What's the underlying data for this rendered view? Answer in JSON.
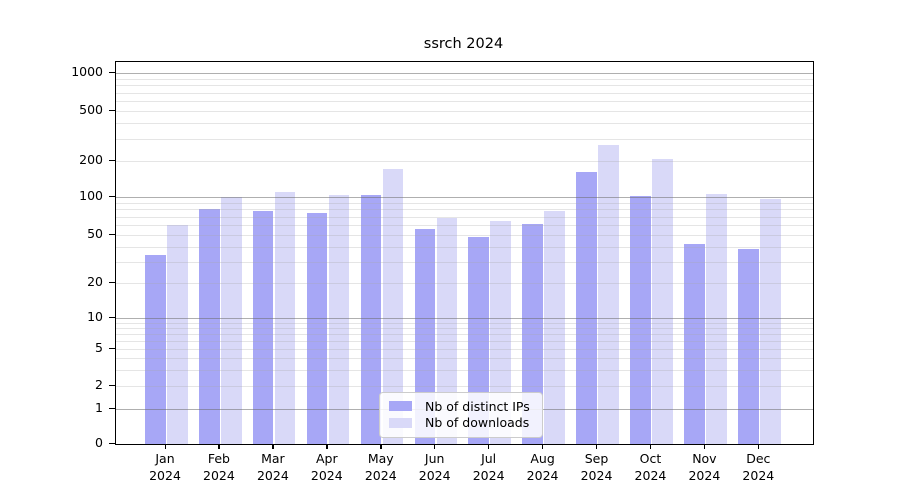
{
  "chart_data": {
    "type": "bar",
    "title": "ssrch 2024",
    "categories": [
      {
        "month": "Jan",
        "year": "2024"
      },
      {
        "month": "Feb",
        "year": "2024"
      },
      {
        "month": "Mar",
        "year": "2024"
      },
      {
        "month": "Apr",
        "year": "2024"
      },
      {
        "month": "May",
        "year": "2024"
      },
      {
        "month": "Jun",
        "year": "2024"
      },
      {
        "month": "Jul",
        "year": "2024"
      },
      {
        "month": "Aug",
        "year": "2024"
      },
      {
        "month": "Sep",
        "year": "2024"
      },
      {
        "month": "Oct",
        "year": "2024"
      },
      {
        "month": "Nov",
        "year": "2024"
      },
      {
        "month": "Dec",
        "year": "2024"
      }
    ],
    "series": [
      {
        "name": "Nb of distinct IPs",
        "color": "#a7a7f6",
        "values": [
          34,
          80,
          77,
          75,
          103,
          56,
          48,
          61,
          163,
          101,
          42,
          38
        ]
      },
      {
        "name": "Nb of downloads",
        "color": "#d9d9f8",
        "values": [
          60,
          100,
          110,
          103,
          170,
          68,
          65,
          77,
          268,
          206,
          107,
          96
        ]
      }
    ],
    "yscale": "symlog",
    "yticks": [
      0,
      1,
      2,
      5,
      10,
      20,
      50,
      100,
      200,
      500,
      1000
    ],
    "ylim": [
      0,
      1300
    ],
    "xlabel": "",
    "ylabel": "",
    "grid": true,
    "legend_position": "lower center"
  }
}
